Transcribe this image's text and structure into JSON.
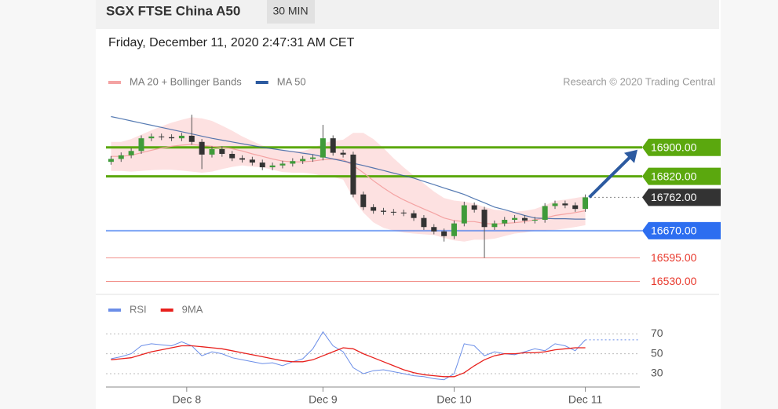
{
  "header": {
    "title": "SGX FTSE China A50",
    "interval": "30 MIN",
    "date": "Friday, December 11, 2020 2:47:31 AM CET"
  },
  "chart_data": [
    {
      "type": "candlestick",
      "annotation": "Research © 2020 Trading Central",
      "up_color": "#3f9b3a",
      "down_color": "#333333",
      "xlim": [
        0,
        48
      ],
      "ylim": [
        16505,
        17025
      ],
      "xticks": [
        {
          "value": 8,
          "label": "Dec 8"
        },
        {
          "value": 21.5,
          "label": "Dec 9"
        },
        {
          "value": 34.5,
          "label": "Dec 10"
        },
        {
          "value": 47.5,
          "label": "Dec 11"
        }
      ],
      "open": [
        16860,
        16868,
        16878,
        16890,
        16925,
        16930,
        16928,
        16925,
        16932,
        16915,
        16880,
        16895,
        16882,
        16870,
        16866,
        16858,
        16845,
        16850,
        16855,
        16862,
        16868,
        16872,
        16925,
        16885,
        16880,
        16770,
        16735,
        16725,
        16722,
        16720,
        16718,
        16705,
        16680,
        16668,
        16655,
        16690,
        16740,
        16728,
        16680,
        16690,
        16700,
        16705,
        16698,
        16700,
        16738,
        16745,
        16740,
        16730
      ],
      "high": [
        16876,
        16886,
        16898,
        16933,
        16938,
        16938,
        16936,
        16940,
        16990,
        16923,
        16903,
        16903,
        16890,
        16878,
        16874,
        16866,
        16858,
        16863,
        16870,
        16876,
        16880,
        16962,
        16933,
        16893,
        16888,
        16778,
        16743,
        16733,
        16730,
        16728,
        16726,
        16713,
        16688,
        16676,
        16698,
        16750,
        16748,
        16736,
        16698,
        16708,
        16713,
        16713,
        16708,
        16746,
        16753,
        16753,
        16748,
        16770
      ],
      "low": [
        16852,
        16860,
        16870,
        16882,
        16917,
        16920,
        16917,
        16917,
        16907,
        16840,
        16872,
        16874,
        16862,
        16858,
        16850,
        16837,
        16837,
        16842,
        16847,
        16854,
        16860,
        16864,
        16877,
        16872,
        16762,
        16727,
        16717,
        16714,
        16712,
        16710,
        16697,
        16672,
        16660,
        16640,
        16647,
        16682,
        16720,
        16595,
        16672,
        16682,
        16692,
        16690,
        16690,
        16692,
        16730,
        16732,
        16722,
        16722
      ],
      "close": [
        16868,
        16878,
        16890,
        16925,
        16930,
        16928,
        16925,
        16932,
        16915,
        16880,
        16895,
        16882,
        16870,
        16866,
        16858,
        16845,
        16850,
        16855,
        16862,
        16868,
        16872,
        16925,
        16885,
        16880,
        16770,
        16735,
        16725,
        16722,
        16720,
        16718,
        16705,
        16680,
        16668,
        16655,
        16690,
        16740,
        16728,
        16680,
        16690,
        16700,
        16705,
        16698,
        16700,
        16738,
        16745,
        16740,
        16730,
        16762
      ],
      "series": [
        {
          "name": "MA 20 + Bollinger Bands",
          "color": "#f4a3a3",
          "band_color": "#fde1e1",
          "values": [
            16875,
            16875,
            16878,
            16885,
            16892,
            16898,
            16903,
            16906,
            16908,
            16905,
            16903,
            16900,
            16896,
            16890,
            16882,
            16875,
            16868,
            16862,
            16860,
            16860,
            16862,
            16866,
            16868,
            16866,
            16850,
            16830,
            16808,
            16788,
            16770,
            16755,
            16742,
            16730,
            16718,
            16705,
            16698,
            16695,
            16695,
            16690,
            16688,
            16690,
            16692,
            16695,
            16700,
            16705,
            16712,
            16716,
            16720,
            16725
          ],
          "upper": [
            16915,
            16915,
            16923,
            16935,
            16947,
            16958,
            16968,
            16976,
            16983,
            16980,
            16973,
            16960,
            16946,
            16930,
            16917,
            16905,
            16898,
            16892,
            16890,
            16890,
            16897,
            16911,
            16918,
            16921,
            16940,
            16940,
            16923,
            16898,
            16870,
            16845,
            16822,
            16800,
            16778,
            16760,
            16753,
            16750,
            16745,
            16735,
            16728,
            16725,
            16722,
            16725,
            16730,
            16740,
            16752,
            16756,
            16760,
            16765
          ],
          "lower": [
            16835,
            16835,
            16833,
            16835,
            16837,
            16838,
            16838,
            16836,
            16833,
            16830,
            16833,
            16840,
            16846,
            16850,
            16847,
            16845,
            16838,
            16832,
            16830,
            16830,
            16827,
            16821,
            16818,
            16811,
            16760,
            16720,
            16693,
            16678,
            16670,
            16665,
            16662,
            16660,
            16658,
            16650,
            16643,
            16640,
            16645,
            16645,
            16648,
            16655,
            16662,
            16665,
            16670,
            16670,
            16672,
            16676,
            16680,
            16685
          ]
        },
        {
          "name": "MA 50",
          "color": "#2c5aa0",
          "values": [
            16985,
            16979,
            16973,
            16967,
            16961,
            16955,
            16949,
            16943,
            16937,
            16931,
            16925,
            16920,
            16915,
            16910,
            16905,
            16900,
            16896,
            16892,
            16888,
            16884,
            16880,
            16874,
            16868,
            16862,
            16856,
            16850,
            16843,
            16836,
            16829,
            16822,
            16815,
            16806,
            16797,
            16788,
            16779,
            16770,
            16758,
            16747,
            16735,
            16728,
            16720,
            16712,
            16705,
            16704,
            16703,
            16703,
            16702,
            16702
          ]
        }
      ],
      "levels": [
        {
          "value": 16900,
          "label": "16900.00",
          "color": "#5ba80e",
          "style": "band",
          "box": true
        },
        {
          "value": 16820,
          "label": "16820.00",
          "color": "#5ba80e",
          "style": "band",
          "box": true
        },
        {
          "value": 16762,
          "label": "16762.00",
          "color": "#333333",
          "style": "dotted",
          "box": true
        },
        {
          "value": 16670,
          "label": "16670.00",
          "color": "#2d6ef0",
          "style": "solid",
          "box": true
        },
        {
          "value": 16595,
          "label": "16595.00",
          "color": "#e8392d",
          "style": "thin",
          "box": false
        },
        {
          "value": 16530,
          "label": "16530.00",
          "color": "#e8392d",
          "style": "thin",
          "box": false
        }
      ]
    },
    {
      "type": "line",
      "xlim": [
        0,
        48
      ],
      "ylim": [
        19,
        82
      ],
      "yticks": [
        30,
        50,
        70
      ],
      "grid": true,
      "series": [
        {
          "name": "RSI",
          "color": "#6b8ee8",
          "values": [
            45,
            47,
            50,
            58,
            60,
            59,
            58,
            62,
            58,
            48,
            52,
            50,
            46,
            44,
            42,
            40,
            41,
            38,
            42,
            45,
            55,
            72,
            58,
            52,
            36,
            30,
            33,
            34,
            32,
            30,
            28,
            27,
            25,
            24,
            30,
            60,
            58,
            48,
            52,
            50,
            49,
            52,
            55,
            53,
            60,
            58,
            53,
            64
          ]
        },
        {
          "name": "9MA",
          "color": "#e8201c",
          "values": [
            44,
            45,
            46,
            49,
            52,
            54,
            56,
            58,
            58,
            57,
            56,
            55,
            53,
            51,
            49,
            47,
            45,
            43,
            42,
            42,
            44,
            48,
            52,
            56,
            55,
            50,
            46,
            42,
            38,
            34,
            31,
            29,
            28,
            27,
            27,
            31,
            38,
            44,
            48,
            50,
            50,
            51,
            51,
            52,
            54,
            55,
            56,
            56
          ]
        }
      ]
    }
  ]
}
